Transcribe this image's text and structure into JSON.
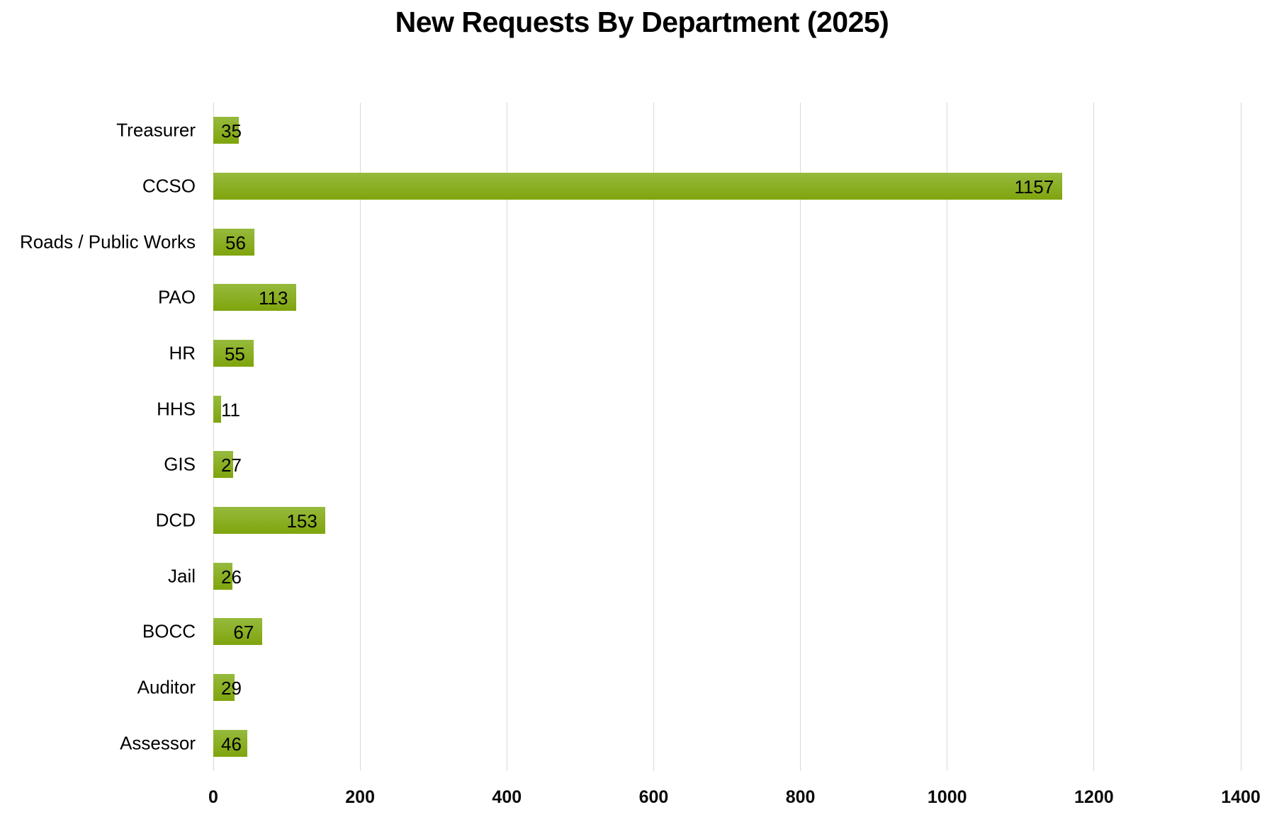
{
  "chart_data": {
    "type": "bar",
    "orientation": "horizontal",
    "title": "New Requests By Department (2025)",
    "categories": [
      "Treasurer",
      "CCSO",
      "Roads / Public Works",
      "PAO",
      "HR",
      "HHS",
      "GIS",
      "DCD",
      "Jail",
      "BOCC",
      "Auditor",
      "Assessor"
    ],
    "values": [
      35,
      1157,
      56,
      113,
      55,
      11,
      27,
      153,
      26,
      67,
      29,
      46
    ],
    "xlabel": "",
    "ylabel": "",
    "xlim": [
      0,
      1400
    ],
    "x_tick_values": [
      0,
      200,
      400,
      600,
      800,
      1000,
      1200,
      1400
    ],
    "grid": "vertical-gridlines-only",
    "legend": "none",
    "data_label_position": "inside-end"
  },
  "colors": {
    "bar_gradient_top": "#96BA3D",
    "bar_gradient_mid": "#8AAE22",
    "bar_gradient_bottom": "#7FA40D",
    "gridline": "#D9D9D9",
    "text": "#000000",
    "background": "#FFFFFF"
  }
}
